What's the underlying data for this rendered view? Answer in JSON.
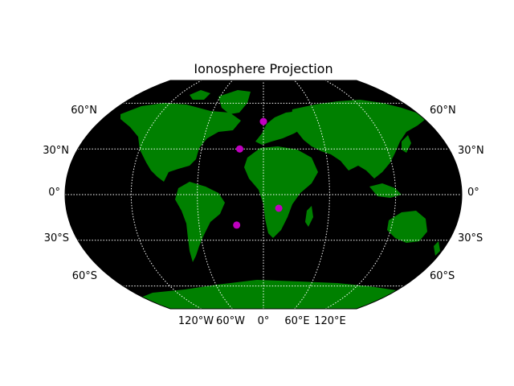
{
  "title": "Ionosphere Projection",
  "colors": {
    "ocean": "#000000",
    "land": "#008000",
    "grid": "#ffffff",
    "marker": "#c000c0"
  },
  "map": {
    "projection": "robinson-like",
    "lat_range": [
      -90,
      90
    ],
    "lon_range": [
      -180,
      180
    ],
    "meridians_deg": [
      -120,
      -60,
      0,
      60,
      120
    ],
    "parallels_deg": [
      -60,
      -30,
      0,
      30,
      60
    ],
    "grid_style": "dotted"
  },
  "labels": {
    "lat": {
      "n60": "60°N",
      "n30": "30°N",
      "eq": "0°",
      "s30": "30°S",
      "s60": "60°S"
    },
    "lon": {
      "w120": "120°W",
      "w60": "60°W",
      "zero": "0°",
      "e60": "60°E",
      "e120": "120°E"
    }
  },
  "markers": [
    {
      "lon": -23,
      "lat": 30
    },
    {
      "lon": 0,
      "lat": 48
    },
    {
      "lon": 14,
      "lat": -9
    },
    {
      "lon": -25,
      "lat": -20
    }
  ]
}
